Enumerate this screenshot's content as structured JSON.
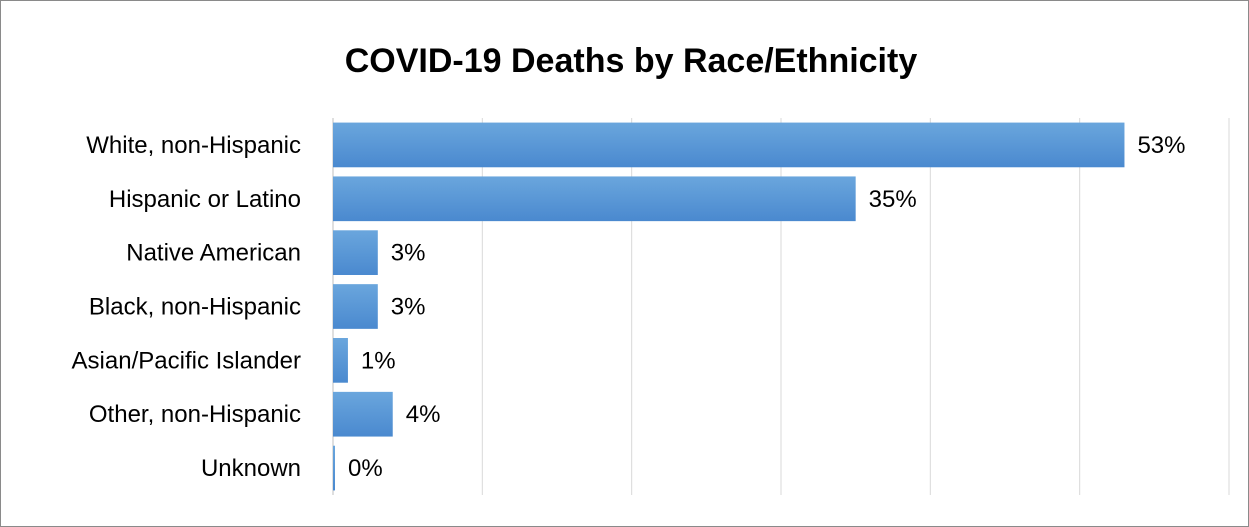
{
  "chart_data": {
    "type": "bar",
    "orientation": "horizontal",
    "title": "COVID-19 Deaths by Race/Ethnicity",
    "xlabel": "",
    "ylabel": "",
    "categories": [
      "White, non-Hispanic",
      "Hispanic or Latino",
      "Native American",
      "Black, non-Hispanic",
      "Asian/Pacific Islander",
      "Other, non-Hispanic",
      "Unknown"
    ],
    "values": [
      53,
      35,
      3,
      3,
      1,
      4,
      0
    ],
    "value_labels": [
      "53%",
      "35%",
      "3%",
      "3%",
      "1%",
      "4%",
      "0%"
    ],
    "xlim": [
      0,
      60
    ],
    "grid": "vertical",
    "legend": "none",
    "bar_color": "#5b9bd5"
  }
}
